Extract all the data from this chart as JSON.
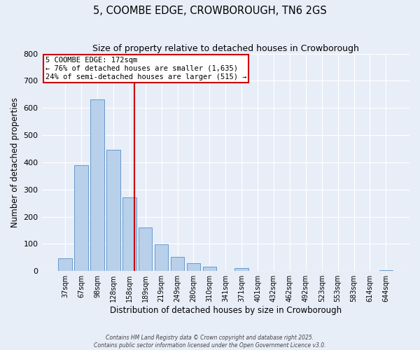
{
  "title": "5, COOMBE EDGE, CROWBOROUGH, TN6 2GS",
  "subtitle": "Size of property relative to detached houses in Crowborough",
  "xlabel": "Distribution of detached houses by size in Crowborough",
  "ylabel": "Number of detached properties",
  "bar_labels": [
    "37sqm",
    "67sqm",
    "98sqm",
    "128sqm",
    "158sqm",
    "189sqm",
    "219sqm",
    "249sqm",
    "280sqm",
    "310sqm",
    "341sqm",
    "371sqm",
    "401sqm",
    "432sqm",
    "462sqm",
    "492sqm",
    "523sqm",
    "553sqm",
    "583sqm",
    "614sqm",
    "644sqm"
  ],
  "bar_values": [
    48,
    390,
    632,
    447,
    272,
    160,
    98,
    52,
    29,
    15,
    0,
    12,
    0,
    0,
    0,
    0,
    0,
    0,
    0,
    0,
    2
  ],
  "bar_color": "#b8d0ea",
  "bar_edge_color": "#6699cc",
  "vline_x": 4.3,
  "vline_color": "#cc0000",
  "annotation_title": "5 COOMBE EDGE: 172sqm",
  "annotation_line1": "← 76% of detached houses are smaller (1,635)",
  "annotation_line2": "24% of semi-detached houses are larger (515) →",
  "annotation_box_color": "#cc0000",
  "ylim": [
    0,
    800
  ],
  "yticks": [
    0,
    100,
    200,
    300,
    400,
    500,
    600,
    700,
    800
  ],
  "background_color": "#e8eef8",
  "grid_color": "#ffffff",
  "footer_line1": "Contains HM Land Registry data © Crown copyright and database right 2025.",
  "footer_line2": "Contains public sector information licensed under the Open Government Licence v3.0."
}
